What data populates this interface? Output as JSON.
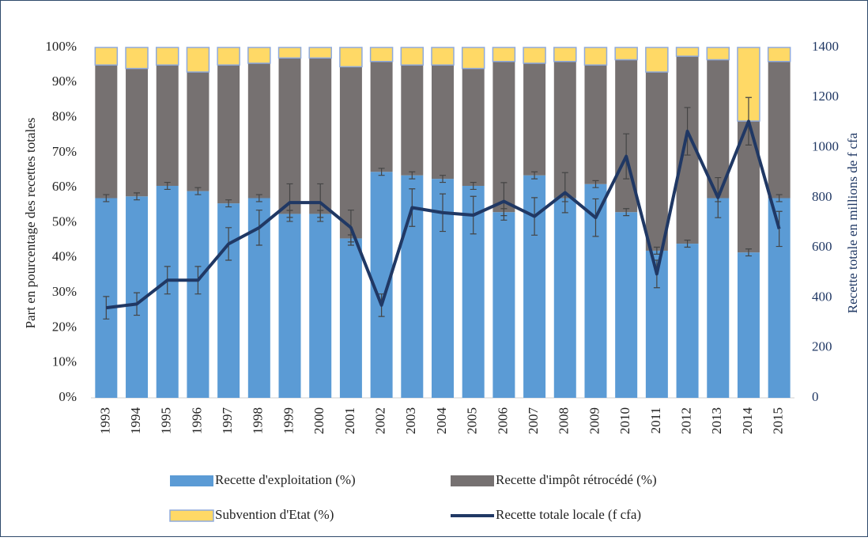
{
  "chart_data": {
    "type": "bar_line",
    "categories": [
      "1993",
      "1994",
      "1995",
      "1996",
      "1997",
      "1998",
      "1999",
      "2000",
      "2001",
      "2002",
      "2003",
      "2004",
      "2005",
      "2006",
      "2007",
      "2008",
      "2009",
      "2010",
      "2011",
      "2012",
      "2013",
      "2014",
      "2015"
    ],
    "ylabel": "Part en pourcentage des recettes totales",
    "y2label": "Recette totale en millions de f cfa",
    "ylim": [
      0,
      100
    ],
    "yticks": [
      {
        "value": 0,
        "label": "0%"
      },
      {
        "value": 10,
        "label": "10%"
      },
      {
        "value": 20,
        "label": "20%"
      },
      {
        "value": 30,
        "label": "30%"
      },
      {
        "value": 40,
        "label": "40%"
      },
      {
        "value": 50,
        "label": "50%"
      },
      {
        "value": 60,
        "label": "60%"
      },
      {
        "value": 70,
        "label": "70%"
      },
      {
        "value": 80,
        "label": "80%"
      },
      {
        "value": 90,
        "label": "90%"
      },
      {
        "value": 100,
        "label": "100%"
      }
    ],
    "y2lim": [
      0,
      1400
    ],
    "y2ticks": [
      0,
      200,
      400,
      600,
      800,
      1000,
      1200,
      1400
    ],
    "stacked": true,
    "grid": false,
    "series": [
      {
        "name": "Recette d'exploitation (%)",
        "type": "bar",
        "color": "#5b9bd5",
        "values": [
          57,
          57.5,
          60.5,
          59,
          55.5,
          57,
          52.5,
          52.5,
          45.5,
          64.5,
          63.5,
          62.5,
          60.5,
          53,
          63.5,
          57,
          61,
          53,
          42,
          44,
          57,
          41.5,
          57
        ],
        "errors": [
          1,
          1,
          1,
          1,
          1,
          1,
          1,
          1,
          1,
          1,
          1,
          1,
          1,
          1,
          1,
          1,
          1,
          1,
          1,
          1,
          1,
          1,
          1
        ]
      },
      {
        "name": "Recette d'impôt rétrocédé (%)",
        "type": "bar",
        "color": "#767171",
        "values": [
          38,
          36.5,
          34.5,
          34,
          39.5,
          38.5,
          44.5,
          44.5,
          49,
          31.5,
          31.5,
          32.5,
          33.5,
          43,
          32,
          39,
          34,
          43.5,
          51,
          53.5,
          39.5,
          37.5,
          39
        ]
      },
      {
        "name": "Subvention d'Etat (%)",
        "type": "bar",
        "color": "#ffd966",
        "values": [
          5,
          6,
          5,
          7,
          5,
          4.5,
          3,
          3,
          5.5,
          4,
          5,
          5,
          6,
          4,
          4.5,
          4,
          5,
          3.5,
          7,
          2.5,
          3.5,
          21,
          4
        ]
      },
      {
        "name": "Recette totale locale (f cfa)",
        "type": "line",
        "axis": "y2",
        "color": "#203864",
        "values": [
          360,
          375,
          470,
          470,
          615,
          680,
          780,
          780,
          680,
          370,
          760,
          740,
          730,
          785,
          725,
          820,
          720,
          965,
          495,
          1065,
          800,
          1105,
          675
        ],
        "errors": [
          45,
          45,
          55,
          55,
          65,
          70,
          75,
          75,
          70,
          45,
          75,
          75,
          75,
          75,
          75,
          80,
          75,
          90,
          55,
          95,
          80,
          95,
          70
        ]
      }
    ]
  }
}
